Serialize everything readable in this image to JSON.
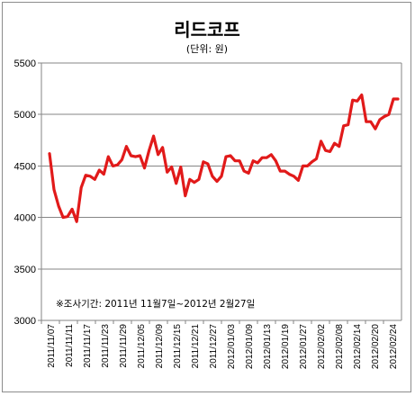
{
  "chart_data": {
    "type": "line",
    "title": "리드코프",
    "subtitle": "(단위: 원)",
    "note": "※조사기간: 2011년 11월7일~2012년 2월27일",
    "ylim": [
      3000,
      5500
    ],
    "yticks": [
      3000,
      3500,
      4000,
      4500,
      5000,
      5500
    ],
    "xtick_labels": [
      "2011/11/07",
      "2011/11/11",
      "2011/11/17",
      "2011/11/23",
      "2011/11/29",
      "2011/12/05",
      "2011/12/09",
      "2011/12/15",
      "2011/12/21",
      "2011/12/27",
      "2012/01/03",
      "2012/01/09",
      "2012/01/13",
      "2012/01/19",
      "2012/01/27",
      "2012/02/02",
      "2012/02/08",
      "2012/02/14",
      "2012/02/20",
      "2012/02/24"
    ],
    "grid": "horizontal",
    "legend": "none",
    "series": [
      {
        "color": "#e11a1a",
        "values": [
          4620,
          4270,
          4110,
          4000,
          4010,
          4080,
          3960,
          4290,
          4410,
          4400,
          4370,
          4460,
          4420,
          4590,
          4500,
          4510,
          4560,
          4690,
          4600,
          4590,
          4600,
          4480,
          4650,
          4790,
          4610,
          4680,
          4440,
          4490,
          4330,
          4490,
          4210,
          4370,
          4340,
          4370,
          4540,
          4520,
          4400,
          4350,
          4400,
          4590,
          4600,
          4550,
          4550,
          4450,
          4430,
          4550,
          4530,
          4580,
          4580,
          4610,
          4550,
          4450,
          4450,
          4420,
          4400,
          4360,
          4500,
          4500,
          4540,
          4570,
          4740,
          4650,
          4640,
          4720,
          4690,
          4890,
          4900,
          5140,
          5130,
          5190,
          4930,
          4930,
          4860,
          4950,
          4980,
          5000,
          5150,
          5150
        ]
      }
    ]
  }
}
